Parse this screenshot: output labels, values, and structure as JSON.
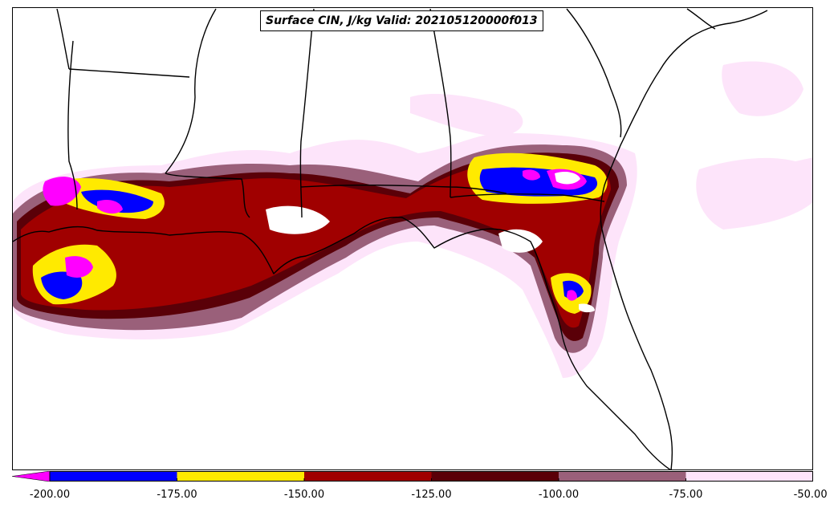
{
  "title": "Surface CIN, J/kg Valid: 202105120000f013",
  "colorbar": {
    "levels": [
      -200,
      -175,
      -150,
      -125,
      -100,
      -75,
      -50
    ],
    "tick_labels": [
      "-200.00",
      "-175.00",
      "-150.00",
      "-125.00",
      "-100.00",
      "-75.00",
      "-50.00"
    ],
    "colors": [
      "#0000ff",
      "#ffea00",
      "#a00000",
      "#5a0008",
      "#9a607a",
      "#fde4fa"
    ],
    "extend_low_color": "#ff00ff"
  },
  "palette": {
    "magenta": "#ff00ff",
    "blue": "#0000ff",
    "yellow": "#ffea00",
    "red": "#a00000",
    "darkred": "#5a0008",
    "mauve": "#9a607a",
    "pink": "#fde4fa"
  }
}
